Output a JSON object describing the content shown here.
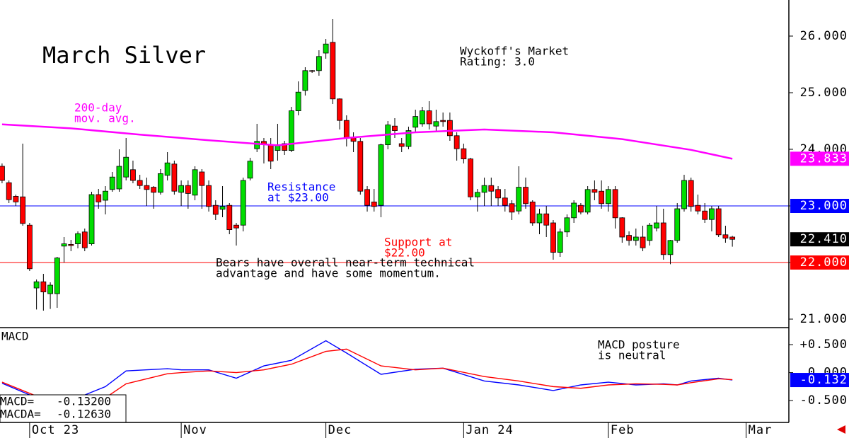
{
  "chart_data": [
    {
      "type": "candlestick",
      "title": "March Silver",
      "xlim": [
        -0.3,
        114.2
      ],
      "ylim": [
        20.85,
        26.6375
      ],
      "yticks": [
        {
          "value": 21,
          "label": "21.000"
        },
        {
          "value": 22,
          "label": "22.000"
        },
        {
          "value": 23,
          "label": "23.000"
        },
        {
          "value": 24,
          "label": "24.000"
        },
        {
          "value": 25,
          "label": "25.000"
        },
        {
          "value": 26,
          "label": "26.000"
        }
      ],
      "up_color": "#00dd00",
      "down_color": "#ff0000",
      "open": [
        23.7,
        23.41,
        23.17,
        23.16,
        22.66,
        21.55,
        21.66,
        21.45,
        21.45,
        22.29,
        22.32,
        22.33,
        22.54,
        22.33,
        23.2,
        23.1,
        23.29,
        23.3,
        23.51,
        23.64,
        23.45,
        23.36,
        23.33,
        23.24,
        23.54,
        23.74,
        23.24,
        23.36,
        23.19,
        23.6,
        23.36,
        23.01,
        22.94,
        23.01,
        22.66,
        22.66,
        23.49,
        24.01,
        24.14,
        24.08,
        23.98,
        24.1,
        23.98,
        24.68,
        25.04,
        25.39,
        25.39,
        25.7,
        25.89,
        24.89,
        24.51,
        24.2,
        24.14,
        23.29,
        23.07,
        23.01,
        24.08,
        24.41,
        24.1,
        24.05,
        24.39,
        24.45,
        24.68,
        24.41,
        24.51,
        24.51,
        24.24,
        24.01,
        23.83,
        23.16,
        23.24,
        23.36,
        23.29,
        23.14,
        23.04,
        22.91,
        23.33,
        23.07,
        22.7,
        22.86,
        22.7,
        22.18,
        22.54,
        22.79,
        23.01,
        22.89,
        23.29,
        23.26,
        23.04,
        23.29,
        22.79,
        22.48,
        22.39,
        22.45,
        22.39,
        22.61,
        22.7,
        22.14,
        22.39,
        22.95,
        23.45,
        23.01,
        22.91,
        22.76,
        22.95,
        22.49,
        22.45
      ],
      "high": [
        23.75,
        23.45,
        23.2,
        24.1,
        22.7,
        21.7,
        21.8,
        21.65,
        22.1,
        22.45,
        22.4,
        22.55,
        22.6,
        23.25,
        23.3,
        23.35,
        23.6,
        24.0,
        24.2,
        23.8,
        23.55,
        23.5,
        23.35,
        23.65,
        23.95,
        23.8,
        23.45,
        23.45,
        23.7,
        23.65,
        23.45,
        23.1,
        23.35,
        23.05,
        22.7,
        23.5,
        23.85,
        24.45,
        24.2,
        24.2,
        24.45,
        24.15,
        24.75,
        25.2,
        25.45,
        25.4,
        25.75,
        25.95,
        26.3,
        24.9,
        24.6,
        24.3,
        24.2,
        23.35,
        23.3,
        24.1,
        24.5,
        24.55,
        24.2,
        24.4,
        24.7,
        24.75,
        24.85,
        24.7,
        24.65,
        24.65,
        24.3,
        24.1,
        23.85,
        23.3,
        23.5,
        23.5,
        23.35,
        23.3,
        23.1,
        23.7,
        23.5,
        23.1,
        22.95,
        23.0,
        22.75,
        22.6,
        22.85,
        23.1,
        23.05,
        23.35,
        23.45,
        23.45,
        23.35,
        23.35,
        22.8,
        22.55,
        22.6,
        22.65,
        22.7,
        23.0,
        22.95,
        22.4,
        23.05,
        23.55,
        23.5,
        23.2,
        23.05,
        23.0,
        23.0,
        22.65,
        22.47
      ],
      "low": [
        23.4,
        23.05,
        23.0,
        22.65,
        21.85,
        21.17,
        21.15,
        21.18,
        21.2,
        22.0,
        22.2,
        22.25,
        22.2,
        22.3,
        22.95,
        22.85,
        23.25,
        23.25,
        23.45,
        23.4,
        23.3,
        23.0,
        22.95,
        23.2,
        23.45,
        23.2,
        23.0,
        22.95,
        23.1,
        22.95,
        22.9,
        22.75,
        22.8,
        22.5,
        22.3,
        22.55,
        23.45,
        23.95,
        23.75,
        23.65,
        23.8,
        23.9,
        23.95,
        24.6,
        24.95,
        25.35,
        25.3,
        25.6,
        24.8,
        24.35,
        24.05,
        23.95,
        23.2,
        22.9,
        22.9,
        22.8,
        24.0,
        24.2,
        23.95,
        24.0,
        24.3,
        24.4,
        24.35,
        24.3,
        24.4,
        24.15,
        23.8,
        23.75,
        23.1,
        22.9,
        23.0,
        23.0,
        23.0,
        22.9,
        22.75,
        22.85,
        22.95,
        22.65,
        22.5,
        22.45,
        22.05,
        22.1,
        22.45,
        22.7,
        22.85,
        22.85,
        23.1,
        22.95,
        22.9,
        22.6,
        22.35,
        22.3,
        22.3,
        22.2,
        22.3,
        22.55,
        22.05,
        21.97,
        22.35,
        22.9,
        22.9,
        22.85,
        22.7,
        22.55,
        22.45,
        22.35,
        22.28
      ],
      "close": [
        23.45,
        23.11,
        23.07,
        22.69,
        21.89,
        21.66,
        21.48,
        21.6,
        22.08,
        22.33,
        22.3,
        22.51,
        22.26,
        23.2,
        23.07,
        23.26,
        23.51,
        23.7,
        23.86,
        23.45,
        23.36,
        23.29,
        23.24,
        23.57,
        23.76,
        23.26,
        23.36,
        23.22,
        23.64,
        23.36,
        22.99,
        22.85,
        22.99,
        22.58,
        22.61,
        23.45,
        23.79,
        24.14,
        24.08,
        23.79,
        24.08,
        23.98,
        24.68,
        25.01,
        25.39,
        25.38,
        25.64,
        25.86,
        24.89,
        24.51,
        24.2,
        24.14,
        23.26,
        23.01,
        22.99,
        24.08,
        24.43,
        24.33,
        24.05,
        24.33,
        24.58,
        24.68,
        24.45,
        24.49,
        24.49,
        24.24,
        24.01,
        23.83,
        23.16,
        23.24,
        23.36,
        23.26,
        23.14,
        23.01,
        22.89,
        23.33,
        23.04,
        22.7,
        22.86,
        22.66,
        22.18,
        22.54,
        22.79,
        23.05,
        22.89,
        23.29,
        23.24,
        23.04,
        23.29,
        22.79,
        22.45,
        22.39,
        22.45,
        22.26,
        22.66,
        22.7,
        22.14,
        22.39,
        22.95,
        23.45,
        22.99,
        22.91,
        22.76,
        22.95,
        22.49,
        22.43,
        22.41
      ],
      "series": [
        {
          "color": "#ff00ff",
          "x": [
            0,
            10,
            20,
            30,
            40,
            50,
            60,
            70,
            80,
            90,
            100,
            106
          ],
          "values": [
            24.44,
            24.37,
            24.26,
            24.16,
            24.07,
            24.2,
            24.3,
            24.35,
            24.3,
            24.18,
            23.99,
            23.833
          ]
        }
      ],
      "reference_lines": [
        {
          "value": 23,
          "color": "#0000ff",
          "lines": [
            "Resistance",
            "at $23.00"
          ]
        },
        {
          "value": 22,
          "color": "#ff0000",
          "lines": [
            "Support at",
            "$22.00"
          ]
        }
      ],
      "annotations": [
        {
          "lines": [
            "Wyckoff's Market",
            "Rating: 3.0"
          ],
          "color": "#000000"
        },
        {
          "lines": [
            "200-day",
            "mov. avg."
          ],
          "color": "#ff00ff"
        },
        {
          "lines": [
            "Bears have overall near-term technical",
            "advantage and have some momentum."
          ],
          "color": "#000000"
        }
      ],
      "axis_boxes": [
        {
          "value": 23.833,
          "label": "23.833",
          "color": "#ff00ff"
        },
        {
          "value": 23,
          "label": "23.000",
          "color": "#0000ff"
        },
        {
          "value": 22.41,
          "label": "22.410",
          "color": "#000000"
        },
        {
          "value": 22,
          "label": "22.000",
          "color": "#ff0000"
        }
      ]
    },
    {
      "type": "line",
      "title": "MACD",
      "xlim": [
        -0.3,
        114.2
      ],
      "ylim": [
        -0.89,
        0.804
      ],
      "xticks": [
        {
          "value": 4,
          "label": "Oct 23"
        },
        {
          "value": 26,
          "label": "Nov"
        },
        {
          "value": 47,
          "label": "Dec"
        },
        {
          "value": 67,
          "label": "Jan 24"
        },
        {
          "value": 88,
          "label": "Feb"
        },
        {
          "value": 108,
          "label": "Mar"
        }
      ],
      "yticks": [
        {
          "value": -0.5,
          "label": "-0.500"
        },
        {
          "value": 0,
          "label": "0.000"
        },
        {
          "value": 0.5,
          "label": "+0.500"
        }
      ],
      "x": [
        0,
        5,
        10,
        15,
        18,
        24,
        26,
        30,
        34,
        38,
        42,
        47,
        50,
        55,
        60,
        64,
        70,
        75,
        80,
        84,
        88,
        92,
        96,
        98,
        100,
        104,
        106
      ],
      "series": [
        {
          "name": "MACD=",
          "last_label": "-0.13200",
          "color": "#0000ff",
          "values": [
            -0.19,
            -0.45,
            -0.5,
            -0.25,
            0.03,
            0.07,
            0.05,
            0.05,
            -0.1,
            0.12,
            0.22,
            0.57,
            0.35,
            -0.03,
            0.06,
            0.08,
            -0.15,
            -0.22,
            -0.32,
            -0.22,
            -0.17,
            -0.22,
            -0.2,
            -0.22,
            -0.15,
            -0.1,
            -0.132
          ]
        },
        {
          "name": "MACDA=",
          "last_label": "-0.12630",
          "color": "#ff0000",
          "values": [
            -0.17,
            -0.42,
            -0.55,
            -0.45,
            -0.2,
            -0.02,
            0.0,
            0.03,
            0.0,
            0.05,
            0.15,
            0.38,
            0.42,
            0.12,
            0.05,
            0.08,
            -0.07,
            -0.15,
            -0.25,
            -0.28,
            -0.22,
            -0.2,
            -0.21,
            -0.22,
            -0.18,
            -0.11,
            -0.1263
          ]
        }
      ],
      "annotations": [
        {
          "lines": [
            "MACD posture",
            "is neutral"
          ],
          "color": "#000000"
        }
      ],
      "axis_boxes": [
        {
          "value": -0.132,
          "label": "-0.132",
          "color": "#0000ff"
        }
      ]
    }
  ]
}
